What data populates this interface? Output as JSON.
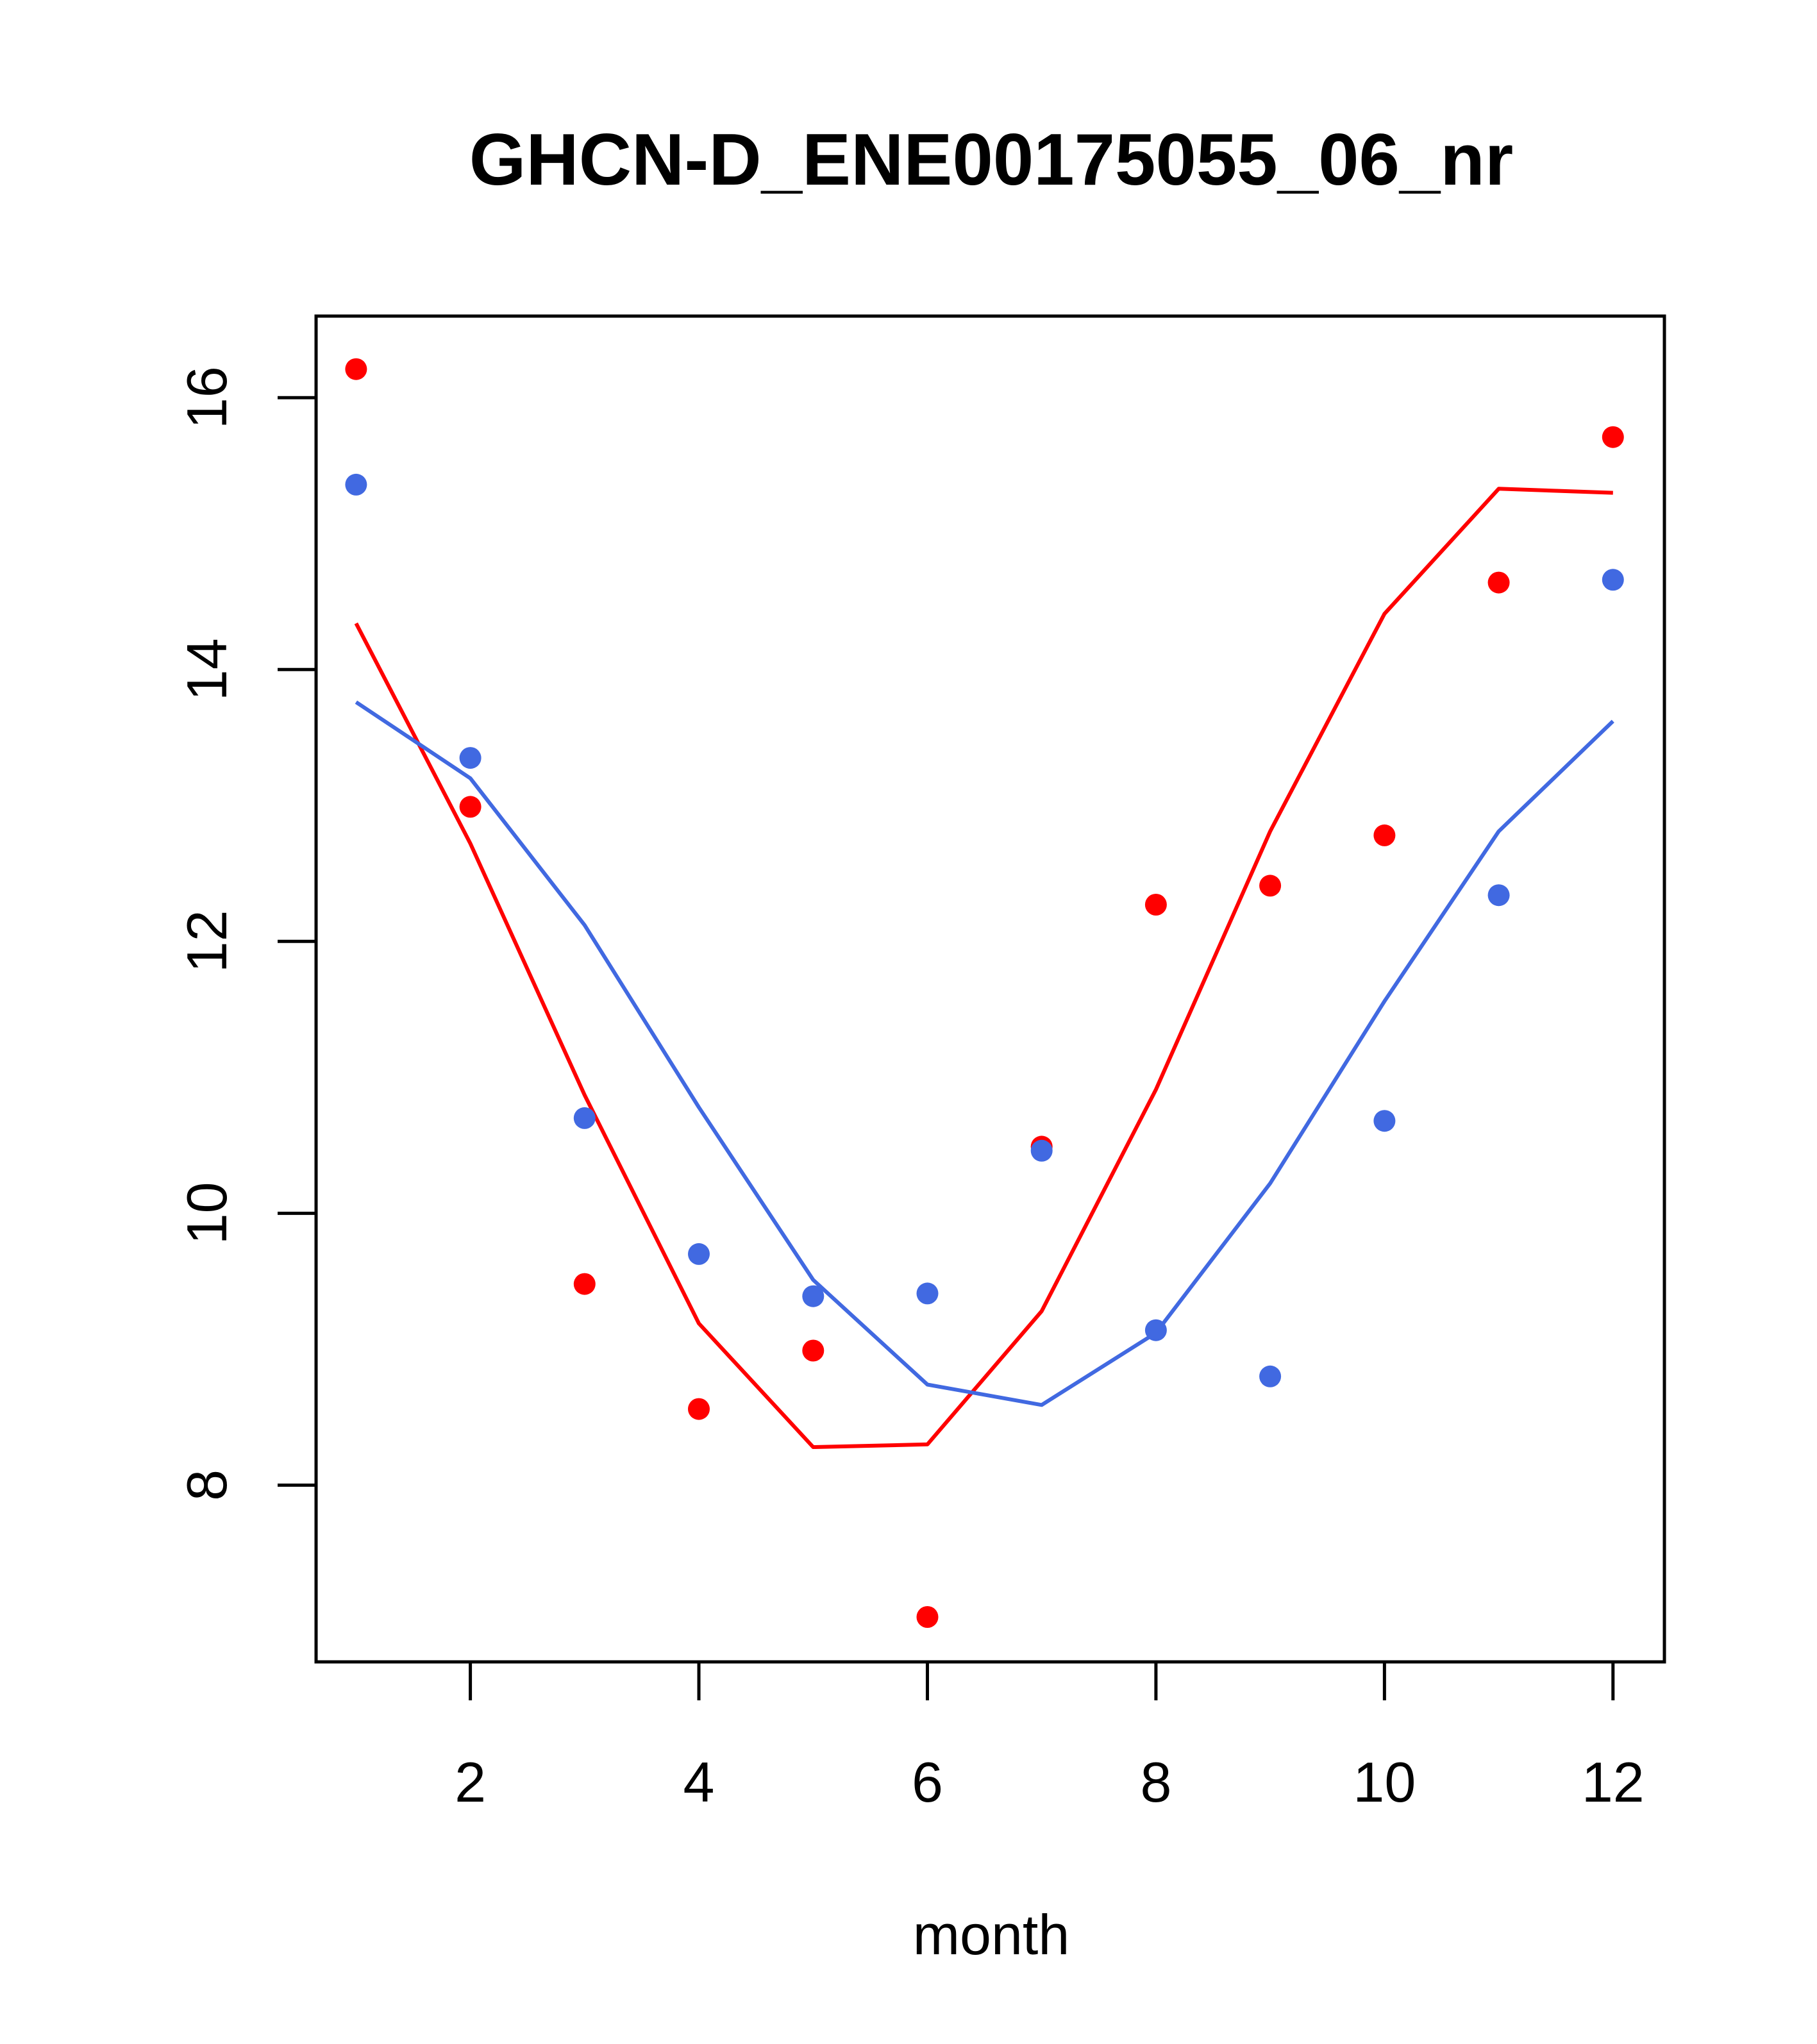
{
  "chart_data": {
    "type": "scatter",
    "title": "GHCN-D_ENE00175055_06_nr",
    "xlabel": "month",
    "ylabel": "",
    "xlim": [
      0.65,
      12.45
    ],
    "ylim": [
      6.7,
      16.6
    ],
    "x_ticks": [
      2,
      4,
      6,
      8,
      10,
      12
    ],
    "y_ticks": [
      8,
      10,
      12,
      14,
      16
    ],
    "grid": false,
    "legend": "none",
    "series": [
      {
        "color": "#ff0000",
        "points_x": [
          1,
          2,
          3,
          4,
          5,
          6,
          7,
          8,
          9,
          10,
          11,
          12
        ],
        "points_y": [
          16.21,
          12.99,
          9.48,
          8.56,
          8.99,
          7.03,
          10.49,
          12.27,
          12.41,
          12.78,
          14.64,
          15.71
        ],
        "line_x": [
          1,
          2,
          3,
          4,
          5,
          6,
          7,
          8,
          9,
          10,
          11,
          12
        ],
        "line_y": [
          14.34,
          12.72,
          10.87,
          9.19,
          8.28,
          8.3,
          9.28,
          10.91,
          12.81,
          14.41,
          15.33,
          15.3
        ]
      },
      {
        "color": "#4169e1",
        "points_x": [
          1,
          2,
          3,
          4,
          5,
          6,
          7,
          8,
          9,
          10,
          11,
          12
        ],
        "points_y": [
          15.36,
          13.35,
          10.7,
          9.7,
          9.39,
          9.41,
          10.46,
          9.14,
          8.8,
          10.68,
          12.34,
          14.66
        ],
        "line_x": [
          1,
          2,
          3,
          4,
          5,
          6,
          7,
          8,
          9,
          10,
          11,
          12
        ],
        "line_y": [
          13.76,
          13.2,
          12.12,
          10.78,
          9.51,
          8.74,
          8.59,
          9.12,
          10.22,
          11.56,
          12.81,
          13.62
        ]
      }
    ]
  }
}
